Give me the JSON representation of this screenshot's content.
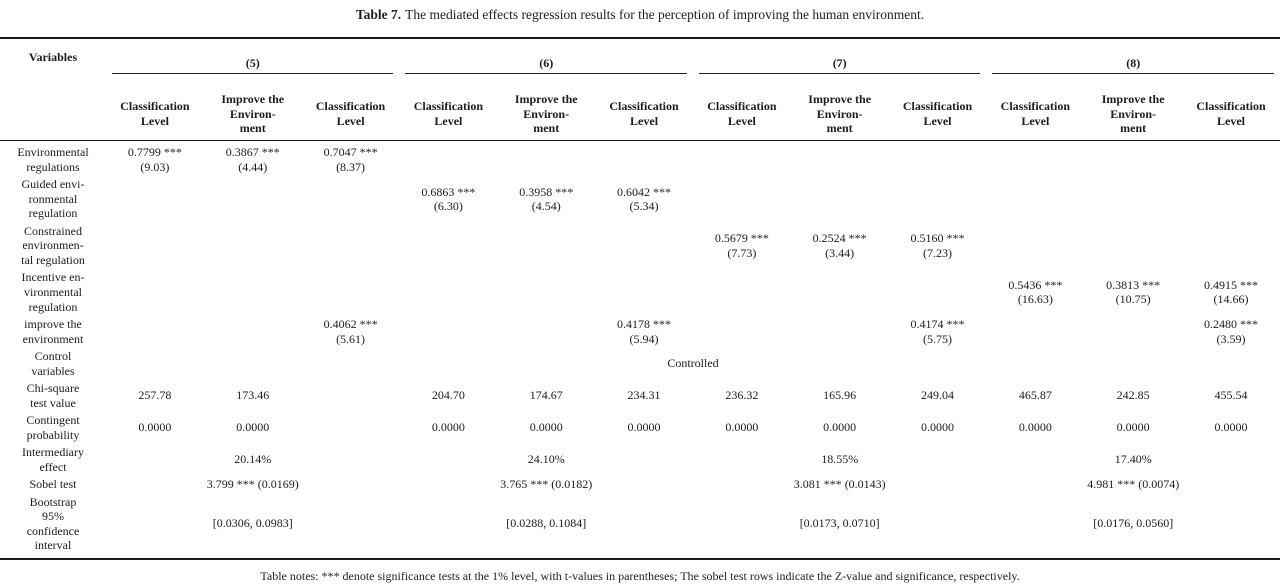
{
  "caption": {
    "label": "Table 7.",
    "text": "The mediated effects regression results for the perception of improving the human environment."
  },
  "table": {
    "variables_header": "Variables",
    "groups": [
      {
        "id": "(5)",
        "columns": [
          "Classification\nLevel",
          "Improve the\nEnviron-\nment",
          "Classification\nLevel"
        ]
      },
      {
        "id": "(6)",
        "columns": [
          "Classification\nLevel",
          "Improve the\nEnviron-\nment",
          "Classification\nLevel"
        ]
      },
      {
        "id": "(7)",
        "columns": [
          "Classification\nLevel",
          "Improve the\nEnviron-\nment",
          "Classification\nLevel"
        ]
      },
      {
        "id": "(8)",
        "columns": [
          "Classification\nLevel",
          "Improve the\nEnviron-\nment",
          "Classification\nLevel"
        ]
      }
    ],
    "rows": [
      {
        "label": "Environmental\nregulations",
        "cells": [
          "0.7799 ***\n(9.03)",
          "0.3867 ***\n(4.44)",
          "0.7047 ***\n(8.37)",
          "",
          "",
          "",
          "",
          "",
          "",
          "",
          "",
          ""
        ]
      },
      {
        "label": "Guided envi-\nronmental\nregulation",
        "cells": [
          "",
          "",
          "",
          "0.6863 ***\n(6.30)",
          "0.3958 ***\n(4.54)",
          "0.6042 ***\n(5.34)",
          "",
          "",
          "",
          "",
          "",
          ""
        ]
      },
      {
        "label": "Constrained\nenvironmen-\ntal regulation",
        "cells": [
          "",
          "",
          "",
          "",
          "",
          "",
          "0.5679 ***\n(7.73)",
          "0.2524 ***\n(3.44)",
          "0.5160 ***\n(7.23)",
          "",
          "",
          ""
        ]
      },
      {
        "label": "Incentive en-\nvironmental\nregulation",
        "cells": [
          "",
          "",
          "",
          "",
          "",
          "",
          "",
          "",
          "",
          "0.5436 ***\n(16.63)",
          "0.3813 ***\n(10.75)",
          "0.4915 ***\n(14.66)"
        ]
      },
      {
        "label": "improve the\nenvironment",
        "cells": [
          "",
          "",
          "0.4062 ***\n(5.61)",
          "",
          "",
          "0.4178 ***\n(5.94)",
          "",
          "",
          "0.4174 ***\n(5.75)",
          "",
          "",
          "0.2480 ***\n(3.59)"
        ]
      },
      {
        "label": "Control\nvariables",
        "span": "all",
        "value": "Controlled"
      },
      {
        "label": "Chi-square\ntest value",
        "cells": [
          "257.78",
          "173.46",
          "",
          "204.70",
          "174.67",
          "234.31",
          "236.32",
          "165.96",
          "249.04",
          "465.87",
          "242.85",
          "455.54"
        ]
      },
      {
        "label": "Contingent\nprobability",
        "cells": [
          "0.0000",
          "0.0000",
          "",
          "0.0000",
          "0.0000",
          "0.0000",
          "0.0000",
          "0.0000",
          "0.0000",
          "0.0000",
          "0.0000",
          "0.0000"
        ]
      },
      {
        "label": "Intermediary\neffect",
        "span": "group",
        "values": [
          "20.14%",
          "24.10%",
          "18.55%",
          "17.40%"
        ]
      },
      {
        "label": "Sobel test",
        "span": "group",
        "values": [
          "3.799 *** (0.0169)",
          "3.765 *** (0.0182)",
          "3.081 *** (0.0143)",
          "4.981 *** (0.0074)"
        ]
      },
      {
        "label": "Bootstrap\n95%\nconfidence\ninterval",
        "span": "group",
        "values": [
          "[0.0306, 0.0983]",
          "[0.0288, 0.1084]",
          "[0.0173, 0.0710]",
          "[0.0176, 0.0560]"
        ]
      }
    ]
  },
  "footnote": "Table notes: *** denote significance tests at the 1% level, with t-values in parentheses; The sobel test rows indicate the Z-value and significance, respectively."
}
